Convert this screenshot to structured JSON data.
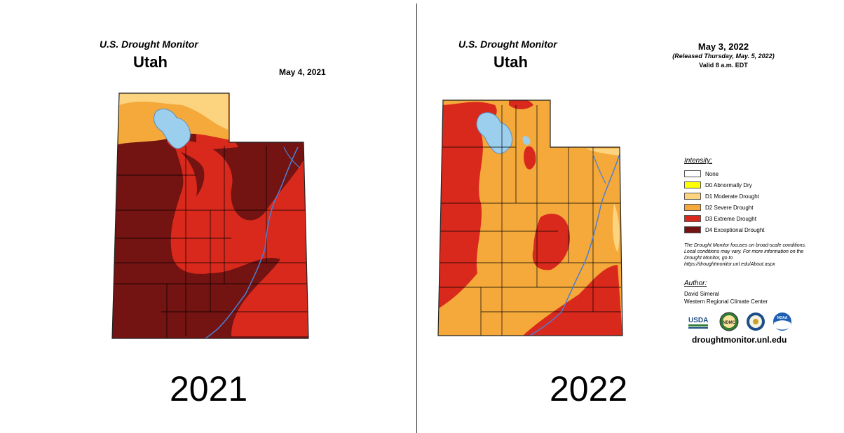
{
  "left": {
    "monitor_title": "U.S. Drought Monitor",
    "state": "Utah",
    "date": "May 4, 2021",
    "year_label": "2021"
  },
  "right": {
    "monitor_title": "U.S. Drought Monitor",
    "state": "Utah",
    "date": "May 3, 2022",
    "released": "(Released Thursday, May. 5, 2022)",
    "valid": "Valid 8 a.m. EDT",
    "year_label": "2022"
  },
  "legend": {
    "title": "Intensity:",
    "items": [
      {
        "label": "None",
        "color": "#ffffff"
      },
      {
        "label": "D0 Abnormally Dry",
        "color": "#ffff00"
      },
      {
        "label": "D1 Moderate Drought",
        "color": "#fcd37f"
      },
      {
        "label": "D2 Severe Drought",
        "color": "#f4a93a"
      },
      {
        "label": "D3 Extreme Drought",
        "color": "#d9291c"
      },
      {
        "label": "D4 Exceptional Drought",
        "color": "#731312"
      }
    ],
    "note": "The Drought Monitor focuses on broad-scale conditions. Local conditions may vary. For more information on the Drought Monitor, go to https://droughtmonitor.unl.edu/About.aspx"
  },
  "author": {
    "heading": "Author:",
    "name": "David Simeral",
    "org": "Western Regional Climate Center"
  },
  "logos": {
    "usda": "USDA",
    "ndmc": "NDMC",
    "noaa": "NOAA"
  },
  "url": "droughtmonitor.unl.edu",
  "colors": {
    "water": "#9ccfee",
    "river": "#4a7fd6",
    "border": "#222222"
  }
}
